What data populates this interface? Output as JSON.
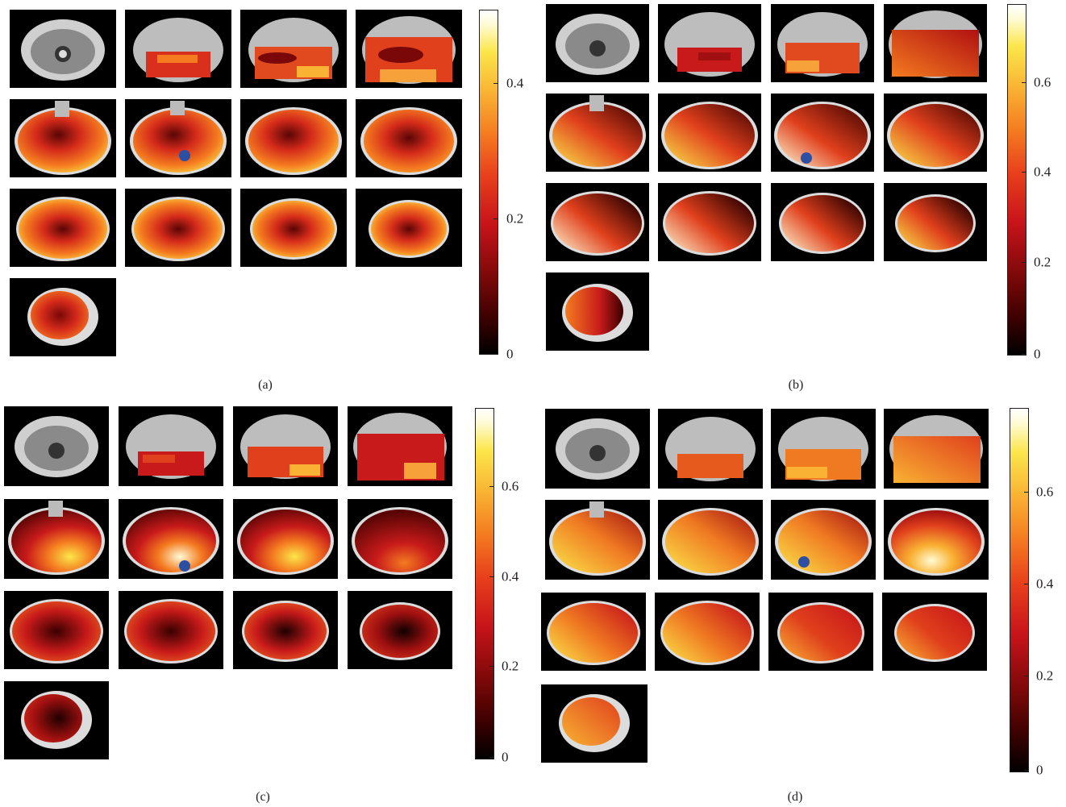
{
  "panels": [
    {
      "caption": "(a)",
      "colorbar_ticks": [
        "0",
        "0.2",
        "0.4"
      ],
      "colorbar_max": 0.5,
      "slices": 13,
      "marker_slice": 6
    },
    {
      "caption": "(b)",
      "colorbar_ticks": [
        "0",
        "0.2",
        "0.4",
        "0.6"
      ],
      "colorbar_max": 0.76,
      "slices": 13,
      "marker_slice": 7
    },
    {
      "caption": "(c)",
      "colorbar_ticks": [
        "0",
        "0.2",
        "0.4",
        "0.6"
      ],
      "colorbar_max": 0.76,
      "slices": 13,
      "marker_slice": 6
    },
    {
      "caption": "(d)",
      "colorbar_ticks": [
        "0",
        "0.2",
        "0.4",
        "0.6"
      ],
      "colorbar_max": 0.78,
      "slices": 13,
      "marker_slice": 7
    }
  ],
  "colors": {
    "marker": "#2b4fa3",
    "background": "#000000",
    "colormap": [
      "#000000",
      "#7a0808",
      "#d81e1e",
      "#f47b20",
      "#fbe64a",
      "#ffffff"
    ]
  }
}
